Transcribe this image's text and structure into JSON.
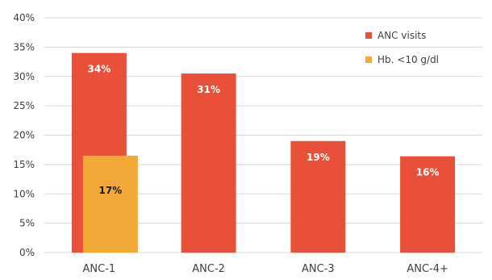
{
  "chart_data": {
    "type": "bar",
    "categories": [
      "ANC-1",
      "ANC-2",
      "ANC-3",
      "ANC-4+"
    ],
    "series": [
      {
        "name": "ANC visits",
        "values": [
          34,
          30.5,
          19,
          16.4
        ],
        "data_labels": [
          "34%",
          "31%",
          "19%",
          "16%"
        ],
        "color": "#E8503A",
        "label_color": "#ffffff"
      },
      {
        "name": "Hb. <10 g/dl",
        "values": [
          16.5,
          null,
          null,
          null
        ],
        "data_labels": [
          "17%",
          null,
          null,
          null
        ],
        "color": "#F3A937",
        "label_color": "#1a1a1a"
      }
    ],
    "y_ticks": [
      "0%",
      "5%",
      "10%",
      "15%",
      "20%",
      "25%",
      "30%",
      "35%",
      "40%"
    ],
    "ylim": [
      0,
      40
    ],
    "y_step": 5,
    "grid": true,
    "gridline_color": "#d9d9d9",
    "legend_position": "top-right",
    "title": "",
    "xlabel": "",
    "ylabel": ""
  }
}
